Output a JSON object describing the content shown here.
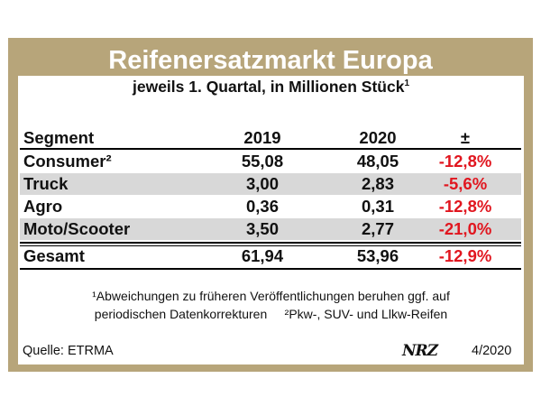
{
  "chart_data": {
    "type": "table",
    "title": "Reifenersatzmarkt Europa",
    "subtitle": "jeweils 1. Quartal, in Millionen Stück",
    "subtitle_sup": "1",
    "columns": [
      "Segment",
      "2019",
      "2020",
      "±"
    ],
    "rows": [
      {
        "segment": "Consumer²",
        "v2019": "55,08",
        "v2020": "48,05",
        "change": "-12,8%"
      },
      {
        "segment": "Truck",
        "v2019": "3,00",
        "v2020": "2,83",
        "change": "-5,6%"
      },
      {
        "segment": "Agro",
        "v2019": "0,36",
        "v2020": "0,31",
        "change": "-12,8%"
      },
      {
        "segment": "Moto/Scooter",
        "v2019": "3,50",
        "v2020": "2,77",
        "change": "-21,0%"
      }
    ],
    "total": {
      "segment": "Gesamt",
      "v2019": "61,94",
      "v2020": "53,96",
      "change": "-12,9%"
    },
    "footnote_line1": "¹Abweichungen zu früheren Veröffentlichungen beruhen ggf. auf",
    "footnote_line2": "periodischen Datenkorrekturen     ²Pkw-, SUV- und Llkw-Reifen",
    "source": "Quelle: ETRMA",
    "logo": "NRZ",
    "issue": "4/2020",
    "colors": {
      "frame": "#b7a57a",
      "negative": "#e1161f",
      "shade": "#d8d8d8"
    }
  }
}
